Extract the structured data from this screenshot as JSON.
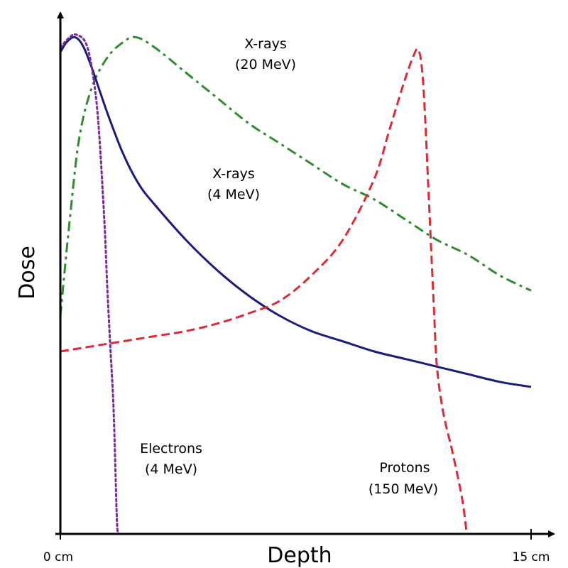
{
  "chart_data": {
    "type": "line",
    "title": "",
    "xlabel": "Depth",
    "ylabel": "Dose",
    "x_tick_labels": [
      "0 cm",
      "15 cm"
    ],
    "xlim": [
      0,
      15
    ],
    "ylim": [
      0,
      1
    ],
    "grid": false,
    "y_ticks_shown": false,
    "series": [
      {
        "key": "xray20",
        "label_lines": [
          "X-rays",
          "(20 MeV)"
        ],
        "color": "#2e8b2e",
        "style": "dash-dot",
        "points": [
          [
            0,
            0.43
          ],
          [
            0.3,
            0.62
          ],
          [
            0.6,
            0.78
          ],
          [
            1.0,
            0.88
          ],
          [
            1.5,
            0.94
          ],
          [
            2.0,
            0.97
          ],
          [
            2.4,
            0.98
          ],
          [
            3.0,
            0.96
          ],
          [
            4.0,
            0.91
          ],
          [
            5.0,
            0.86
          ],
          [
            6.0,
            0.81
          ],
          [
            7.0,
            0.77
          ],
          [
            8.0,
            0.73
          ],
          [
            9.0,
            0.69
          ],
          [
            10.0,
            0.66
          ],
          [
            11.0,
            0.62
          ],
          [
            12.0,
            0.58
          ],
          [
            13.0,
            0.55
          ],
          [
            14.0,
            0.51
          ],
          [
            15.0,
            0.48
          ]
        ]
      },
      {
        "key": "xray4",
        "label_lines": [
          "X-rays",
          "(4 MeV)"
        ],
        "color": "#1a1a80",
        "style": "solid",
        "points": [
          [
            0,
            0.95
          ],
          [
            0.2,
            0.97
          ],
          [
            0.45,
            0.98
          ],
          [
            0.7,
            0.965
          ],
          [
            1.0,
            0.92
          ],
          [
            1.5,
            0.83
          ],
          [
            2.0,
            0.75
          ],
          [
            2.5,
            0.69
          ],
          [
            3.0,
            0.65
          ],
          [
            4.0,
            0.58
          ],
          [
            5.0,
            0.52
          ],
          [
            6.0,
            0.47
          ],
          [
            7.0,
            0.43
          ],
          [
            8.0,
            0.4
          ],
          [
            9.0,
            0.38
          ],
          [
            10.0,
            0.36
          ],
          [
            11.0,
            0.345
          ],
          [
            12.0,
            0.33
          ],
          [
            13.0,
            0.315
          ],
          [
            14.0,
            0.3
          ],
          [
            15.0,
            0.29
          ]
        ]
      },
      {
        "key": "electrons",
        "label_lines": [
          "Electrons",
          "(4 MeV)"
        ],
        "color": "#7a2a9a",
        "style": "dotted",
        "points": [
          [
            0,
            0.96
          ],
          [
            0.3,
            0.98
          ],
          [
            0.5,
            0.985
          ],
          [
            0.8,
            0.97
          ],
          [
            1.0,
            0.92
          ],
          [
            1.2,
            0.82
          ],
          [
            1.4,
            0.62
          ],
          [
            1.5,
            0.48
          ],
          [
            1.6,
            0.36
          ],
          [
            1.7,
            0.24
          ],
          [
            1.8,
            0.03
          ],
          [
            1.85,
            0.0
          ]
        ]
      },
      {
        "key": "protons",
        "label_lines": [
          "Protons",
          "(150 MeV)"
        ],
        "color": "#dd2b35",
        "style": "dashed",
        "points": [
          [
            0,
            0.36
          ],
          [
            1.0,
            0.37
          ],
          [
            2.0,
            0.38
          ],
          [
            3.0,
            0.39
          ],
          [
            4.0,
            0.4
          ],
          [
            5.0,
            0.415
          ],
          [
            6.0,
            0.435
          ],
          [
            7.0,
            0.46
          ],
          [
            8.0,
            0.51
          ],
          [
            9.0,
            0.58
          ],
          [
            10.0,
            0.7
          ],
          [
            10.5,
            0.8
          ],
          [
            11.0,
            0.9
          ],
          [
            11.3,
            0.95
          ],
          [
            11.4,
            0.955
          ],
          [
            11.5,
            0.93
          ],
          [
            11.6,
            0.85
          ],
          [
            11.75,
            0.65
          ],
          [
            11.9,
            0.45
          ],
          [
            12.0,
            0.33
          ],
          [
            12.2,
            0.24
          ],
          [
            12.5,
            0.16
          ],
          [
            12.8,
            0.07
          ],
          [
            12.95,
            0.0
          ]
        ]
      }
    ]
  }
}
